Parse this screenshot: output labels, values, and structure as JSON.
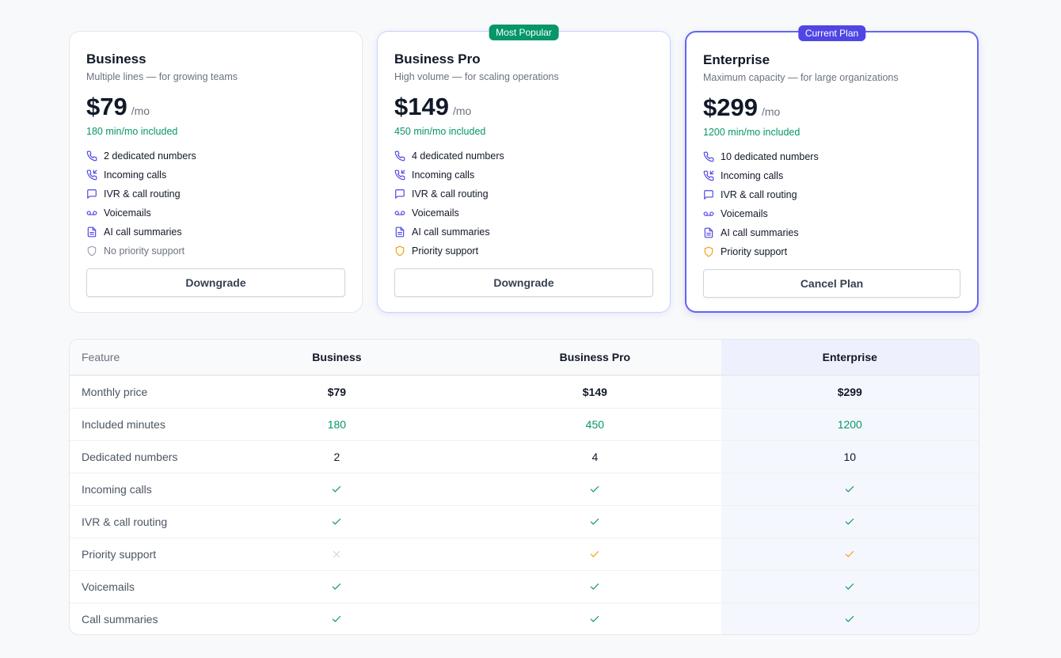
{
  "plans": [
    {
      "name": "Business",
      "tagline": "Multiple lines — for growing teams",
      "price": "$79",
      "period": "/mo",
      "minutes": "180 min/mo included",
      "features": [
        "2 dedicated numbers",
        "Incoming calls",
        "IVR & call routing",
        "Voicemails",
        "AI call summaries",
        "No priority support"
      ],
      "priority_support": false,
      "button": "Downgrade"
    },
    {
      "name": "Business Pro",
      "badge": "Most Popular",
      "tagline": "High volume — for scaling operations",
      "price": "$149",
      "period": "/mo",
      "minutes": "450 min/mo included",
      "features": [
        "4 dedicated numbers",
        "Incoming calls",
        "IVR & call routing",
        "Voicemails",
        "AI call summaries",
        "Priority support"
      ],
      "priority_support": true,
      "button": "Downgrade"
    },
    {
      "name": "Enterprise",
      "badge": "Current Plan",
      "tagline": "Maximum capacity — for large organizations",
      "price": "$299",
      "period": "/mo",
      "minutes": "1200 min/mo included",
      "features": [
        "10 dedicated numbers",
        "Incoming calls",
        "IVR & call routing",
        "Voicemails",
        "AI call summaries",
        "Priority support"
      ],
      "priority_support": true,
      "button": "Cancel Plan",
      "current": true
    }
  ],
  "table": {
    "header": [
      "Feature",
      "Business",
      "Business Pro",
      "Enterprise"
    ],
    "rows": [
      {
        "label": "Monthly price",
        "cells": [
          "$79",
          "$149",
          "$299"
        ]
      },
      {
        "label": "Included minutes",
        "cells": [
          "180",
          "450",
          "1200"
        ],
        "color": "#059669"
      },
      {
        "label": "Dedicated numbers",
        "cells": [
          "2",
          "4",
          "10"
        ]
      },
      {
        "label": "Incoming calls",
        "cells": [
          true,
          true,
          true
        ]
      },
      {
        "label": "IVR & call routing",
        "cells": [
          true,
          true,
          true
        ]
      },
      {
        "label": "Priority support",
        "cells": [
          false,
          true,
          true
        ],
        "color": "#f59e0b"
      },
      {
        "label": "Voicemails",
        "cells": [
          true,
          true,
          true
        ]
      },
      {
        "label": "Call summaries",
        "cells": [
          true,
          true,
          true
        ]
      }
    ],
    "check_color": "#059669"
  }
}
